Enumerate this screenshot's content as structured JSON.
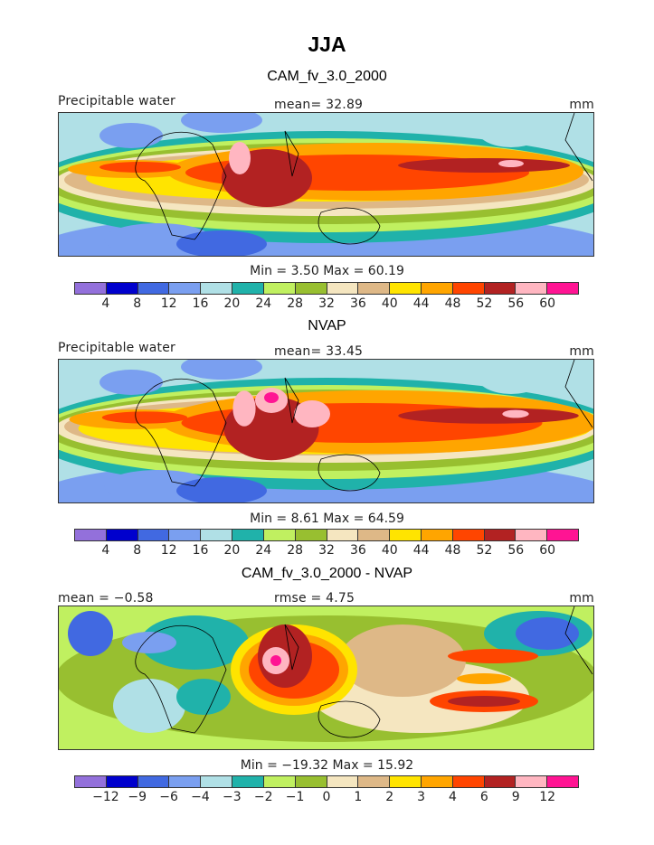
{
  "chart_data": {
    "type": "heatmap",
    "title": "JJA",
    "panels": [
      {
        "title": "CAM_fv_3.0_2000",
        "left_label": "Precipitable water",
        "center_label": "mean=   32.89",
        "right_label": "mm",
        "min_max": "Min =    3.50  Max =   60.19",
        "levels": [
          "4",
          "8",
          "12",
          "16",
          "20",
          "24",
          "28",
          "32",
          "36",
          "40",
          "44",
          "48",
          "52",
          "56",
          "60"
        ]
      },
      {
        "title": "NVAP",
        "left_label": "Precipitable water",
        "center_label": "mean=   33.45",
        "right_label": "mm",
        "min_max": "Min =    8.61  Max =   64.59",
        "levels": [
          "4",
          "8",
          "12",
          "16",
          "20",
          "24",
          "28",
          "32",
          "36",
          "40",
          "44",
          "48",
          "52",
          "56",
          "60"
        ]
      },
      {
        "title": "CAM_fv_3.0_2000 - NVAP",
        "left_label": "mean =   −0.58",
        "center_label": "rmse =    4.75",
        "right_label": "mm",
        "min_max": "Min = −19.32  Max =   15.92",
        "levels": [
          "−12",
          "−9",
          "−6",
          "−4",
          "−3",
          "−2",
          "−1",
          "0",
          "1",
          "2",
          "3",
          "4",
          "6",
          "9",
          "12"
        ]
      }
    ],
    "colors": [
      "#9370db",
      "#0000cd",
      "#4169e1",
      "#7a9ff0",
      "#b0e0e6",
      "#20b2aa",
      "#c0f060",
      "#98bf30",
      "#f5e6c0",
      "#deb887",
      "#ffe400",
      "#ffa500",
      "#ff4500",
      "#b22222",
      "#ffb6c1",
      "#ff1493"
    ]
  }
}
